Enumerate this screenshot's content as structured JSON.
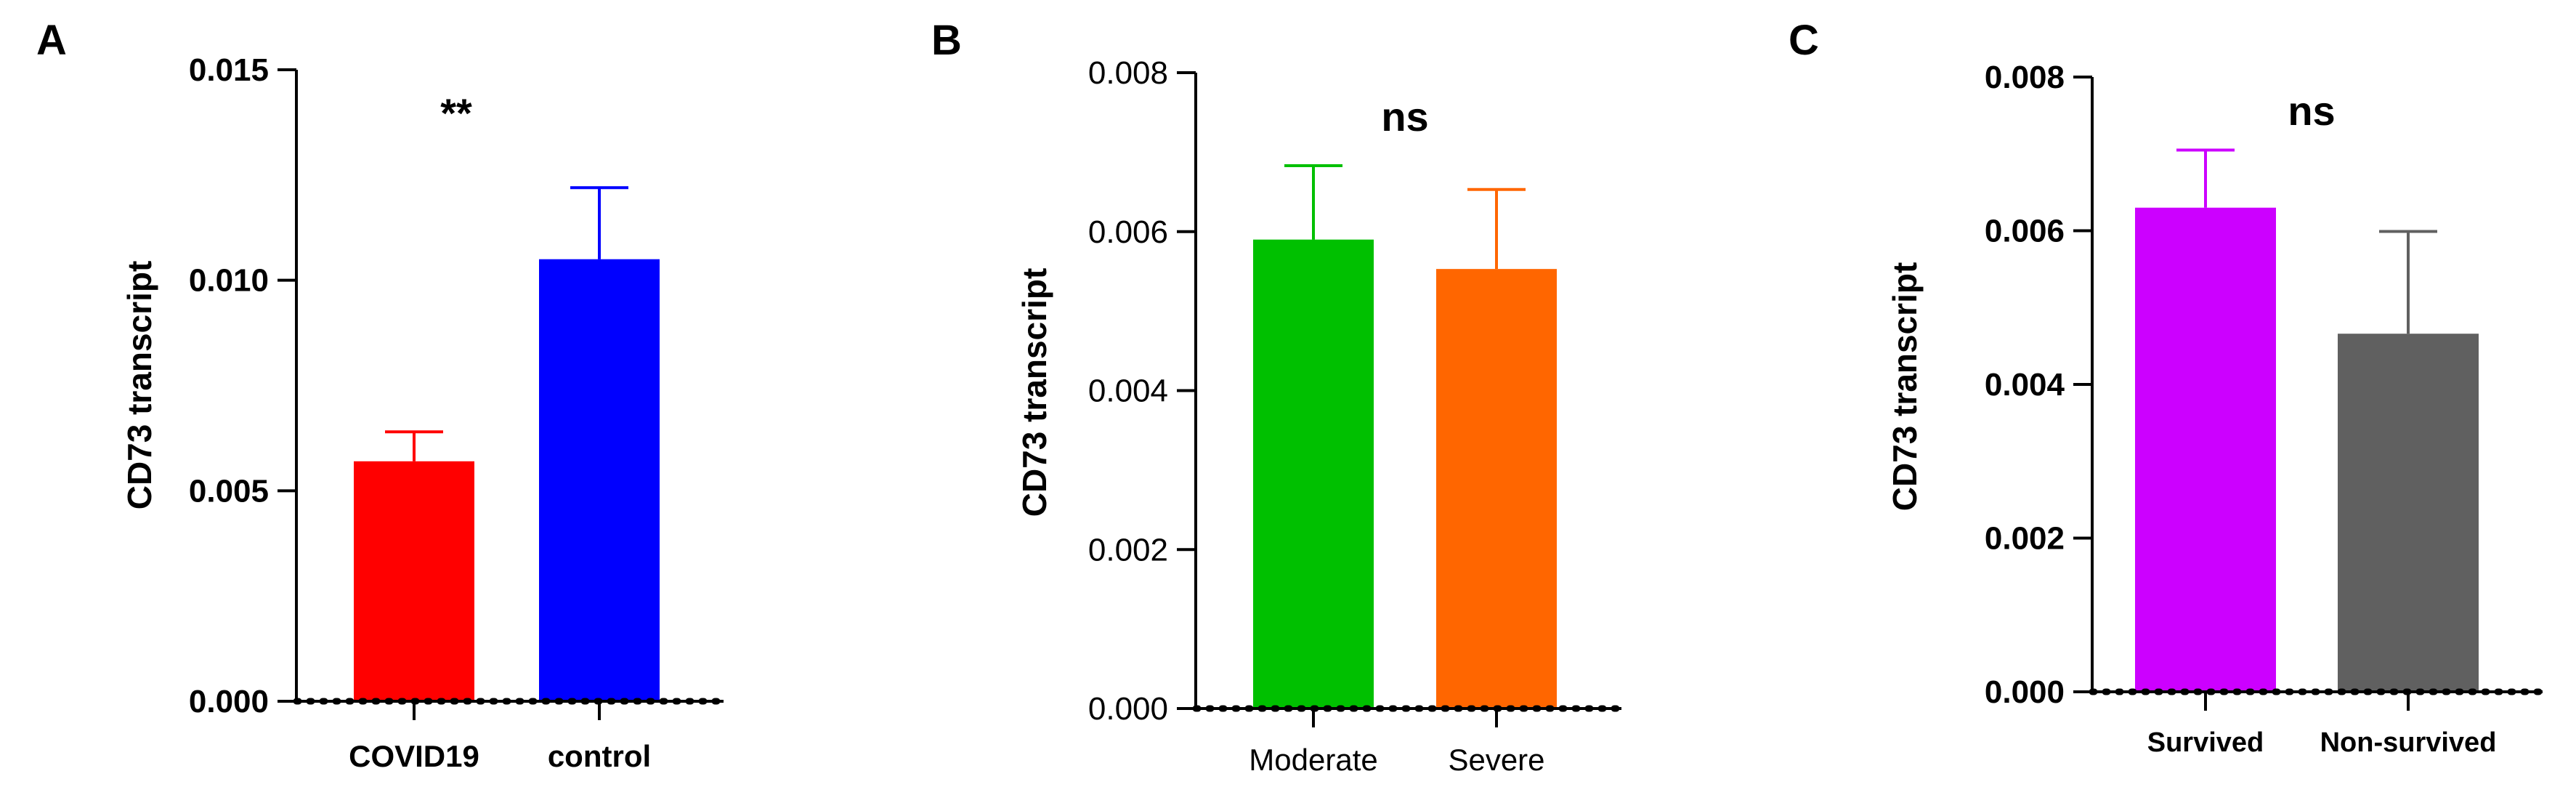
{
  "chart_data": [
    {
      "panel_label": "A",
      "type": "bar",
      "ylabel": "CD73 transcript",
      "ylim": [
        0,
        0.015
      ],
      "yticks": [
        "0.000",
        "0.005",
        "0.010",
        "0.015"
      ],
      "tick_values": [
        0,
        0.005,
        0.01,
        0.015
      ],
      "bold_ticks": true,
      "categories": [
        "COVID19",
        "control"
      ],
      "values": [
        0.0057,
        0.0105
      ],
      "errors": [
        0.0007,
        0.0017
      ],
      "colors": [
        "#ff0000",
        "#0000ff"
      ],
      "annotation": "**"
    },
    {
      "panel_label": "B",
      "type": "bar",
      "ylabel": "CD73 transcript",
      "ylim": [
        0,
        0.008
      ],
      "yticks": [
        "0.000",
        "0.002",
        "0.004",
        "0.006",
        "0.008"
      ],
      "tick_values": [
        0,
        0.002,
        0.004,
        0.006,
        0.008
      ],
      "bold_ticks": false,
      "categories": [
        "Moderate",
        "Severe"
      ],
      "values": [
        0.0059,
        0.00553
      ],
      "errors": [
        0.00093,
        0.001
      ],
      "colors": [
        "#00c000",
        "#ff6600"
      ],
      "annotation": "ns"
    },
    {
      "panel_label": "C",
      "type": "bar",
      "ylabel": "CD73 transcript",
      "ylim": [
        0,
        0.008
      ],
      "yticks": [
        "0.000",
        "0.002",
        "0.004",
        "0.006",
        "0.008"
      ],
      "tick_values": [
        0,
        0.002,
        0.004,
        0.006,
        0.008
      ],
      "bold_ticks": true,
      "categories": [
        "Survived",
        "Non-survived"
      ],
      "values": [
        0.0063,
        0.00466
      ],
      "errors": [
        0.00075,
        0.00133
      ],
      "colors": [
        "#cc00ff",
        "#606060"
      ],
      "annotation": "ns"
    }
  ]
}
